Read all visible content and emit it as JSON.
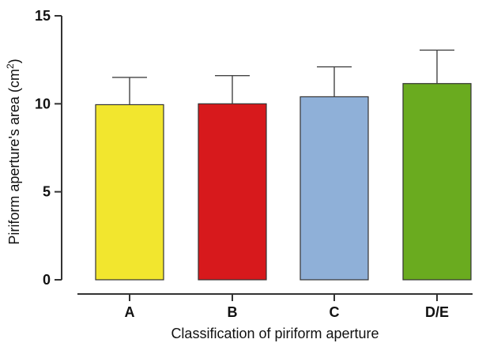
{
  "chart_data": {
    "type": "bar",
    "categories": [
      "A",
      "B",
      "C",
      "D/E"
    ],
    "values": [
      9.95,
      10.0,
      10.4,
      11.15
    ],
    "error_upper": [
      11.5,
      11.6,
      12.1,
      13.05
    ],
    "colors": [
      "#f2e62e",
      "#d7191c",
      "#8fb0d8",
      "#6aab1f"
    ],
    "xlabel": "Classification of piriform aperture",
    "ylabel_main": "Piriform aperture's area (cm",
    "ylabel_sup": "2",
    "ylabel_close": ")",
    "ylim": [
      0,
      15
    ],
    "yticks": [
      0,
      5,
      10,
      15
    ],
    "ytick_labels": [
      "0",
      "5",
      "10",
      "15"
    ],
    "grid": false,
    "legend": "none"
  }
}
